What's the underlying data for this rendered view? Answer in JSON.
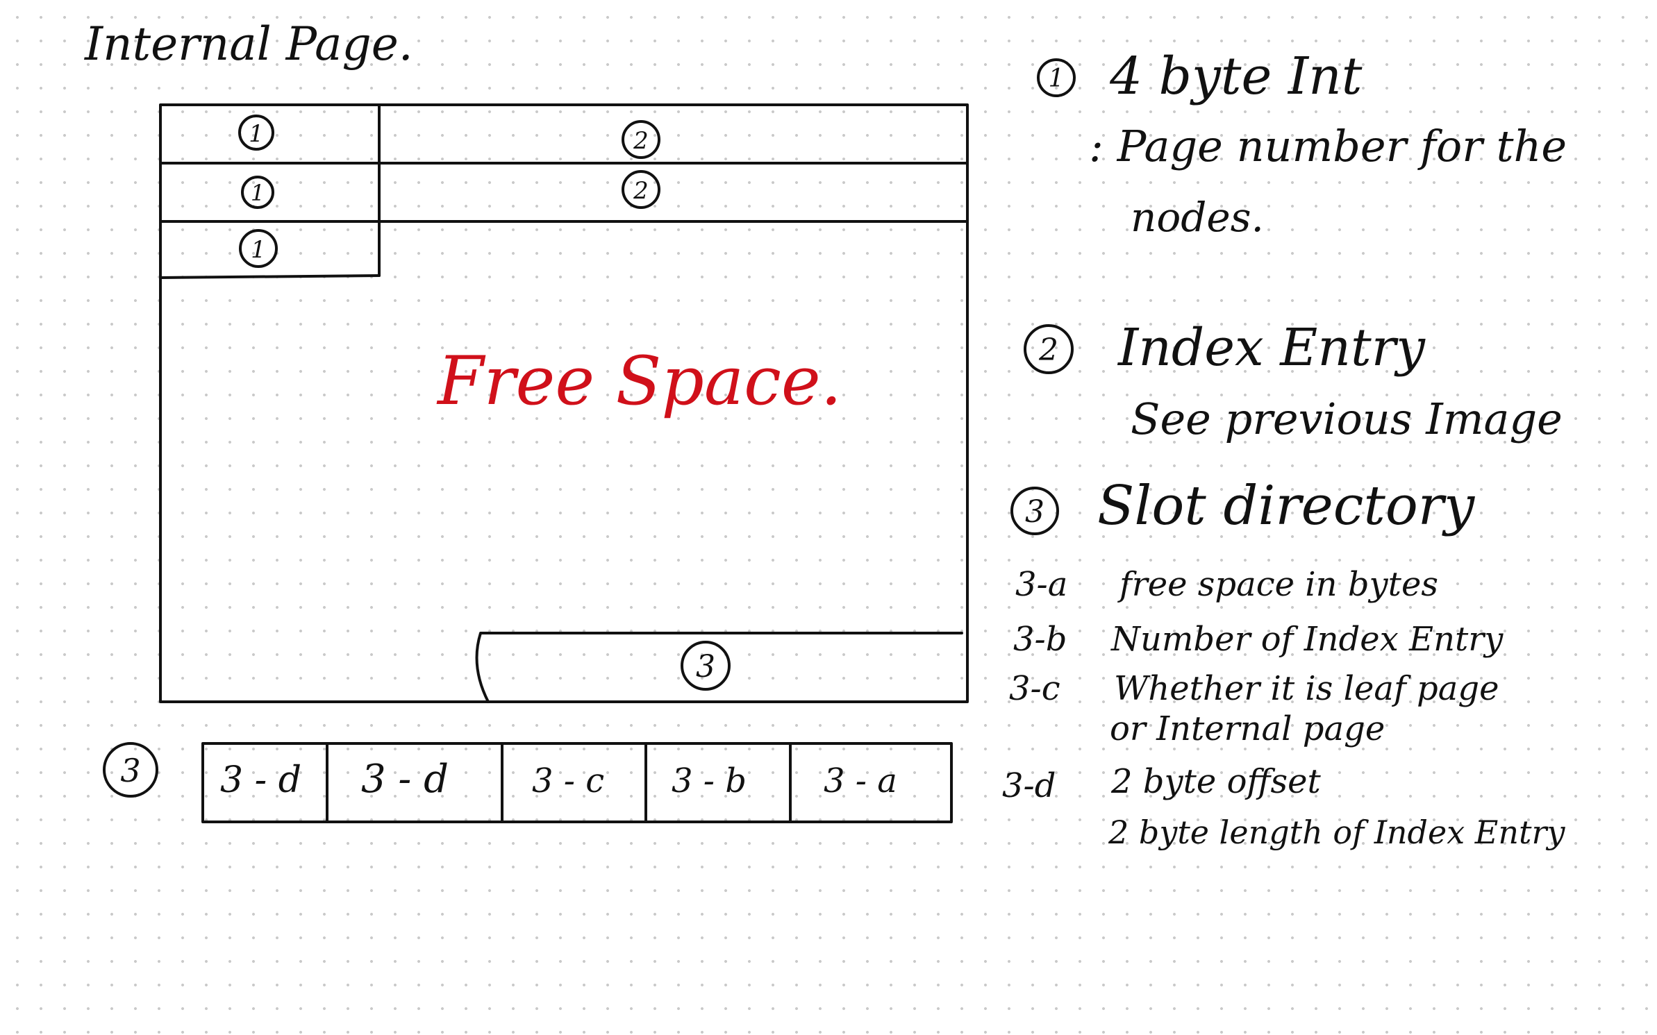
{
  "title": "Internal Page.",
  "page_diagram": {
    "header_rows": [
      {
        "left_marker": "1",
        "right_marker": "2"
      },
      {
        "left_marker": "1",
        "right_marker": "2"
      },
      {
        "left_marker": "1"
      }
    ],
    "free_space_label": "Free Space.",
    "free_space_color": "#d0101a",
    "slot_directory_marker": "3"
  },
  "slot_directory_strip": {
    "marker": "3",
    "cells": [
      "3 - d",
      "3 - d",
      "3 - c",
      "3 - b",
      "3 - a"
    ]
  },
  "legend": {
    "item1": {
      "marker": "1",
      "title": "4 byte Int",
      "line1": ": Page number for the",
      "line2": "nodes."
    },
    "item2": {
      "marker": "2",
      "title": "Index Entry",
      "line1": "See previous Image"
    },
    "item3": {
      "marker": "3",
      "title": "Slot directory",
      "subitems": [
        {
          "key": "3-a",
          "lines": [
            "free space in bytes"
          ]
        },
        {
          "key": "3-b",
          "lines": [
            "Number of Index Entry"
          ]
        },
        {
          "key": "3-c",
          "lines": [
            "Whether it is leaf page",
            "or Internal page"
          ]
        },
        {
          "key": "3-d",
          "lines": [
            "2 byte offset",
            "2 byte length of Index Entry"
          ]
        }
      ]
    }
  }
}
